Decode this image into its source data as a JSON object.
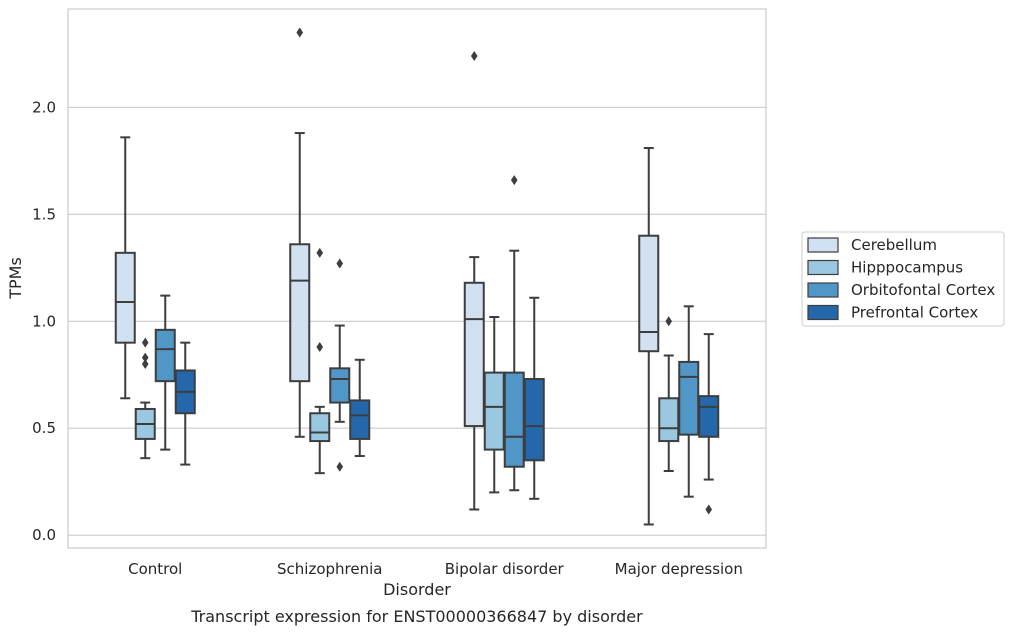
{
  "chart_data": {
    "type": "boxplot",
    "caption": "Transcript expression for ENST00000366847 by disorder",
    "xlabel": "Disorder",
    "ylabel": "TPMs",
    "ylim": [
      -0.06,
      2.46
    ],
    "yticks": [
      0.0,
      0.5,
      1.0,
      1.5,
      2.0
    ],
    "ytick_labels": [
      "0.0",
      "0.5",
      "1.0",
      "1.5",
      "2.0"
    ],
    "grid": "horizontal",
    "legend_position": "right",
    "categories": [
      "Control",
      "Schizophrenia",
      "Bipolar disorder",
      "Major depression"
    ],
    "series": [
      {
        "name": "Cerebellum",
        "color": "#d1e1f1",
        "boxes": [
          {
            "whislo": 0.64,
            "q1": 0.9,
            "med": 1.09,
            "q3": 1.32,
            "whishi": 1.86,
            "fliers": []
          },
          {
            "whislo": 0.46,
            "q1": 0.72,
            "med": 1.19,
            "q3": 1.36,
            "whishi": 1.88,
            "fliers": [
              2.35
            ]
          },
          {
            "whislo": 0.12,
            "q1": 0.51,
            "med": 1.01,
            "q3": 1.18,
            "whishi": 1.3,
            "fliers": [
              2.24
            ]
          },
          {
            "whislo": 0.05,
            "q1": 0.86,
            "med": 0.95,
            "q3": 1.4,
            "whishi": 1.81,
            "fliers": []
          }
        ]
      },
      {
        "name": "Hipppocampus",
        "color": "#9ac8e0",
        "boxes": [
          {
            "whislo": 0.36,
            "q1": 0.45,
            "med": 0.52,
            "q3": 0.59,
            "whishi": 0.62,
            "fliers": [
              0.8,
              0.83,
              0.9
            ]
          },
          {
            "whislo": 0.29,
            "q1": 0.44,
            "med": 0.48,
            "q3": 0.57,
            "whishi": 0.6,
            "fliers": [
              0.88,
              1.32
            ]
          },
          {
            "whislo": 0.2,
            "q1": 0.4,
            "med": 0.6,
            "q3": 0.76,
            "whishi": 1.02,
            "fliers": []
          },
          {
            "whislo": 0.3,
            "q1": 0.44,
            "med": 0.5,
            "q3": 0.64,
            "whishi": 0.84,
            "fliers": [
              1.0
            ]
          }
        ]
      },
      {
        "name": "Orbitofontal Cortex",
        "color": "#5096c6",
        "boxes": [
          {
            "whislo": 0.4,
            "q1": 0.72,
            "med": 0.87,
            "q3": 0.96,
            "whishi": 1.12,
            "fliers": []
          },
          {
            "whislo": 0.53,
            "q1": 0.62,
            "med": 0.73,
            "q3": 0.78,
            "whishi": 0.98,
            "fliers": [
              0.32,
              1.27
            ]
          },
          {
            "whislo": 0.21,
            "q1": 0.32,
            "med": 0.46,
            "q3": 0.76,
            "whishi": 1.33,
            "fliers": [
              1.66
            ]
          },
          {
            "whislo": 0.18,
            "q1": 0.47,
            "med": 0.74,
            "q3": 0.81,
            "whishi": 1.07,
            "fliers": []
          }
        ]
      },
      {
        "name": "Prefrontal Cortex",
        "color": "#2468ab",
        "boxes": [
          {
            "whislo": 0.33,
            "q1": 0.57,
            "med": 0.67,
            "q3": 0.77,
            "whishi": 0.9,
            "fliers": []
          },
          {
            "whislo": 0.37,
            "q1": 0.45,
            "med": 0.56,
            "q3": 0.63,
            "whishi": 0.82,
            "fliers": []
          },
          {
            "whislo": 0.17,
            "q1": 0.35,
            "med": 0.51,
            "q3": 0.73,
            "whishi": 1.11,
            "fliers": []
          },
          {
            "whislo": 0.26,
            "q1": 0.46,
            "med": 0.6,
            "q3": 0.65,
            "whishi": 0.94,
            "fliers": [
              0.12
            ]
          }
        ]
      }
    ]
  }
}
